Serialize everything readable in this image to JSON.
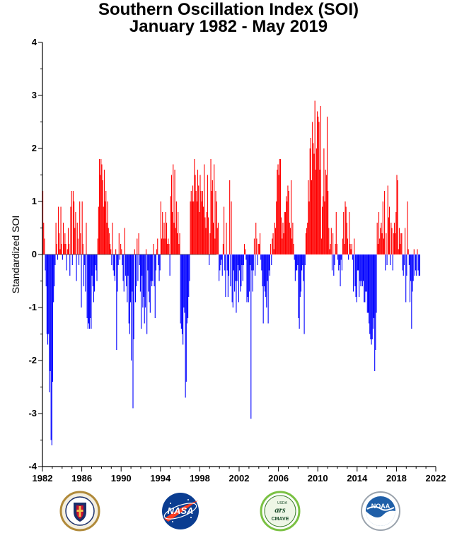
{
  "title_line1": "Southern Oscillation Index (SOI)",
  "title_line2": "January 1982 - May 2019",
  "logos": {
    "dha": {
      "name": "Defense Health Agency",
      "text": "DEFENSE HEALTH AGENCY"
    },
    "nasa": {
      "name": "NASA",
      "text": "NASA"
    },
    "cmave": {
      "name": "USDA ARS CMAVE",
      "text_top": "USDA",
      "text_mid": "ars",
      "text_bottom": "CMAVE"
    },
    "noaa": {
      "name": "NOAA",
      "text": "NOAA"
    }
  },
  "chart_data": {
    "type": "bar",
    "ylabel": "Standardized SOI",
    "ylim": [
      -4,
      4
    ],
    "yticks": [
      -4,
      -3,
      -2,
      -1,
      0,
      1,
      2,
      3,
      4
    ],
    "xlim": [
      1982,
      2022
    ],
    "xticks": [
      1982,
      1986,
      1990,
      1994,
      1998,
      2002,
      2006,
      2010,
      2014,
      2018,
      2022
    ],
    "x_unit": "year",
    "positive_color": "#ff0000",
    "negative_color": "#0000ff",
    "grid": false,
    "series": [
      {
        "time_step": "monthly",
        "x_start": "1982-01",
        "values": [
          1.2,
          0.6,
          0.3,
          -0.3,
          -0.6,
          -1.5,
          -1.7,
          -1.5,
          -2.6,
          -2.2,
          -3.5,
          -3.6,
          -2.4,
          -0.9,
          -0.6,
          -0.2,
          0.6,
          0.2,
          -0.1,
          0.9,
          0.4,
          0.1,
          0.9,
          0.2,
          -0.1,
          0.6,
          0.2,
          0.4,
          0.2,
          -0.3,
          0.1,
          0.5,
          0.2,
          -0.4,
          0.9,
          1.2,
          -0.2,
          1.2,
          1.0,
          0.5,
          0.8,
          -0.5,
          0.6,
          0.3,
          -0.2,
          1.0,
          0.4,
          -1.0,
          1.0,
          0.2,
          -0.6,
          -0.2,
          -0.7,
          0.6,
          -1.2,
          -1.4,
          -1.3,
          -1.4,
          -1.2,
          -1.4,
          -0.4,
          -0.6,
          -0.9,
          -0.7,
          -0.2,
          -0.3,
          -0.5,
          0.3,
          0.9,
          1.8,
          1.5,
          1.8,
          1.7,
          1.4,
          0.9,
          1.6,
          1.0,
          1.2,
          0.6,
          1.0,
          0.5,
          0.4,
          0.2,
          0.1,
          -0.2,
          0.6,
          -0.3,
          -0.4,
          -0.5,
          0.1,
          -1.8,
          -0.7,
          -0.2,
          0.4,
          -0.1,
          0.2,
          0.1,
          -0.2,
          -0.5,
          -0.7,
          0.5,
          -0.4,
          -0.6,
          -0.9,
          -0.4,
          -1.3,
          -1.5,
          -0.9,
          -2.0,
          -0.7,
          -2.9,
          -1.6,
          0.1,
          -0.9,
          -0.6,
          0.3,
          -0.5,
          0.4,
          -0.2,
          -0.7,
          -1.4,
          -0.4,
          -1.0,
          -0.8,
          -1.3,
          -1.0,
          0.1,
          -1.5,
          -0.3,
          -0.7,
          -0.9,
          -1.1,
          -0.5,
          -0.6,
          -0.5,
          0.2,
          -0.6,
          -1.2,
          -0.3,
          0.1,
          0.3,
          -0.2,
          -0.5,
          -0.3,
          1.0,
          0.3,
          0.8,
          0.3,
          0.6,
          0.3,
          0.8,
          0.6,
          0.2,
          0.3,
          0.2,
          -0.4,
          1.1,
          1.5,
          0.8,
          1.7,
          0.6,
          1.6,
          0.5,
          1.0,
          0.4,
          0.8,
          0.2,
          0.4,
          -1.3,
          -1.4,
          -1.5,
          -1.7,
          -1.0,
          -1.1,
          -2.7,
          -2.4,
          -1.3,
          -1.2,
          -0.8,
          -0.5,
          1.0,
          1.2,
          1.0,
          1.3,
          1.0,
          1.8,
          1.5,
          1.2,
          1.0,
          1.6,
          1.3,
          0.8,
          1.5,
          1.2,
          1.0,
          1.2,
          0.9,
          1.7,
          0.7,
          0.5,
          0.8,
          1.5,
          0.7,
          -0.2,
          0.4,
          1.8,
          1.2,
          1.4,
          0.6,
          1.7,
          0.3,
          1.2,
          1.0,
          0.5,
          0.6,
          -0.5,
          -0.3,
          -0.2,
          -0.1,
          -0.4,
          0.2,
          0.9,
          -0.3,
          -0.8,
          0.6,
          -0.3,
          -0.8,
          -0.4,
          1.4,
          -0.6,
          1.0,
          -0.9,
          -1.0,
          -0.3,
          -0.7,
          -0.5,
          -1.1,
          -0.5,
          -0.2,
          -0.9,
          -0.3,
          -0.7,
          -0.6,
          -0.2,
          -0.5,
          -0.2,
          0.2,
          0.1,
          -0.1,
          -0.9,
          -0.8,
          -0.9,
          -0.7,
          -0.2,
          -3.1,
          -0.3,
          -0.7,
          -0.3,
          0.3,
          -0.4,
          0.6,
          0.3,
          -0.2,
          0.2,
          0.2,
          0.4,
          -0.1,
          -0.3,
          -0.6,
          -1.3,
          -0.6,
          -0.7,
          -0.8,
          -1.0,
          -0.5,
          -1.3,
          -0.3,
          -0.4,
          0.2,
          -0.2,
          0.3,
          0.4,
          0.1,
          0.6,
          0.5,
          1.0,
          1.6,
          1.7,
          1.5,
          1.8,
          1.8,
          0.7,
          0.3,
          0.6,
          0.4,
          0.8,
          0.8,
          1.1,
          1.0,
          1.3,
          1.2,
          0.6,
          0.5,
          1.4,
          0.3,
          0.6,
          0.2,
          -0.1,
          -0.5,
          -0.3,
          -0.3,
          -0.2,
          -1.2,
          -1.4,
          -0.8,
          -0.7,
          -0.3,
          -0.2,
          -0.5,
          -1.5,
          -0.2,
          0.4,
          0.5,
          0.6,
          1.4,
          1.0,
          2.0,
          2.2,
          1.4,
          2.5,
          2.1,
          1.9,
          2.9,
          1.6,
          2.0,
          2.7,
          2.6,
          2.5,
          1.6,
          2.8,
          0.3,
          0.9,
          1.1,
          2.0,
          1.0,
          1.6,
          1.5,
          2.6,
          1.2,
          0.5,
          0.1,
          0.2,
          0.5,
          -0.3,
          0.4,
          -0.4,
          -0.2,
          0.2,
          0.8,
          0.2,
          -0.1,
          -0.3,
          -0.2,
          -0.6,
          -0.1,
          -0.3,
          0.3,
          0.8,
          0.2,
          1.0,
          0.9,
          0.6,
          0.3,
          -0.1,
          0.8,
          0.2,
          0.1,
          0.2,
          -0.1,
          -0.7,
          0.3,
          -0.6,
          -0.8,
          -0.9,
          -0.3,
          -0.3,
          -0.8,
          -0.5,
          -0.6,
          -0.5,
          -0.6,
          -0.5,
          -0.9,
          -0.9,
          -0.7,
          -0.7,
          -1.1,
          -1.1,
          -1.3,
          -1.5,
          -1.6,
          -1.7,
          -1.6,
          -1.4,
          -1.2,
          -2.2,
          -1.8,
          -1.1,
          0.6,
          0.2,
          0.8,
          0.3,
          0.5,
          0.6,
          0.4,
          1.0,
          0.3,
          1.2,
          -0.3,
          0.4,
          -0.2,
          1.3,
          0.7,
          0.9,
          -0.2,
          0.6,
          0.5,
          -0.3,
          0.4,
          0.6,
          0.4,
          0.8,
          1.5,
          1.4,
          0.1,
          0.5,
          0.2,
          0.4,
          0.4,
          -0.3,
          -0.4,
          -0.2,
          0.5,
          -0.9,
          -0.4,
          1.0,
          0.1,
          -0.2,
          -0.9,
          -0.5,
          -1.4,
          -0.7,
          -0.5,
          0.1,
          -0.4,
          -0.3,
          -0.4,
          0.1,
          -0.3,
          -0.4,
          -0.4
        ]
      }
    ]
  }
}
